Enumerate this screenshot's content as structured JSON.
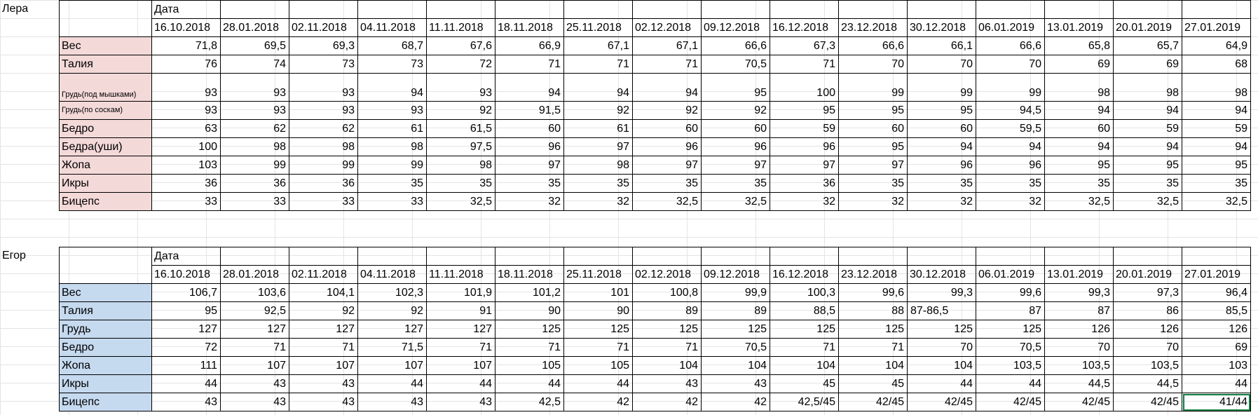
{
  "lera": {
    "label": "Лера",
    "date_header": "Дата",
    "dates": [
      "16.10.2018",
      "28.01.2018",
      "02.11.2018",
      "04.11.2018",
      "11.11.2018",
      "18.11.2018",
      "25.11.2018",
      "02.12.2018",
      "09.12.2018",
      "16.12.2018",
      "23.12.2018",
      "30.12.2018",
      "06.01.2019",
      "13.01.2019",
      "20.01.2019",
      "27.01.2019"
    ],
    "rows": [
      {
        "label": "Вес",
        "values": [
          "71,8",
          "69,5",
          "69,3",
          "68,7",
          "67,6",
          "66,9",
          "67,1",
          "67,1",
          "66,6",
          "67,3",
          "66,6",
          "66,1",
          "66,6",
          "65,8",
          "65,7",
          "64,9"
        ]
      },
      {
        "label": "Талия",
        "values": [
          "76",
          "74",
          "73",
          "73",
          "72",
          "71",
          "71",
          "71",
          "70,5",
          "71",
          "70",
          "70",
          "70",
          "69",
          "69",
          "68"
        ]
      },
      {
        "label": "Грудь(под мышками)",
        "values": [
          "93",
          "93",
          "93",
          "94",
          "93",
          "94",
          "94",
          "94",
          "95",
          "100",
          "99",
          "99",
          "99",
          "98",
          "98",
          "98"
        ]
      },
      {
        "label": "Грудь(по соскам)",
        "values": [
          "93",
          "93",
          "93",
          "93",
          "92",
          "91,5",
          "92",
          "92",
          "92",
          "95",
          "95",
          "95",
          "94,5",
          "94",
          "94",
          "94"
        ]
      },
      {
        "label": "Бедро",
        "values": [
          "63",
          "62",
          "62",
          "61",
          "61,5",
          "60",
          "61",
          "60",
          "60",
          "59",
          "60",
          "60",
          "59,5",
          "60",
          "59",
          "59"
        ]
      },
      {
        "label": "Бедра(уши)",
        "values": [
          "100",
          "98",
          "98",
          "98",
          "97,5",
          "96",
          "97",
          "96",
          "96",
          "96",
          "95",
          "94",
          "94",
          "94",
          "94",
          "94"
        ]
      },
      {
        "label": "Жопа",
        "values": [
          "103",
          "99",
          "99",
          "99",
          "98",
          "97",
          "98",
          "97",
          "97",
          "97",
          "97",
          "96",
          "96",
          "95",
          "95",
          "95"
        ]
      },
      {
        "label": "Икры",
        "values": [
          "36",
          "36",
          "36",
          "35",
          "35",
          "35",
          "35",
          "35",
          "35",
          "36",
          "35",
          "35",
          "35",
          "35",
          "35",
          "35"
        ]
      },
      {
        "label": "Бицепс",
        "values": [
          "33",
          "33",
          "33",
          "33",
          "32,5",
          "32",
          "32",
          "32,5",
          "32,5",
          "32",
          "32",
          "32",
          "32",
          "32,5",
          "32,5",
          "32,5"
        ]
      }
    ]
  },
  "egor": {
    "label": "Егор",
    "date_header": "Дата",
    "dates": [
      "16.10.2018",
      "28.01.2018",
      "02.11.2018",
      "04.11.2018",
      "11.11.2018",
      "18.11.2018",
      "25.11.2018",
      "02.12.2018",
      "09.12.2018",
      "16.12.2018",
      "23.12.2018",
      "30.12.2018",
      "06.01.2019",
      "13.01.2019",
      "20.01.2019",
      "27.01.2019"
    ],
    "rows": [
      {
        "label": "Вес",
        "values": [
          "106,7",
          "103,6",
          "104,1",
          "102,3",
          "101,9",
          "101,2",
          "101",
          "100,8",
          "99,9",
          "100,3",
          "99,6",
          "99,3",
          "99,6",
          "99,3",
          "97,3",
          "96,4"
        ]
      },
      {
        "label": "Талия",
        "values": [
          "95",
          "92,5",
          "92",
          "92",
          "91",
          "90",
          "90",
          "89",
          "89",
          "88,5",
          "88",
          "87-86,5",
          "87",
          "87",
          "86",
          "85,5"
        ]
      },
      {
        "label": "Грудь",
        "values": [
          "127",
          "127",
          "127",
          "127",
          "127",
          "125",
          "125",
          "125",
          "125",
          "125",
          "125",
          "125",
          "125",
          "126",
          "126",
          "126"
        ]
      },
      {
        "label": "Бедро",
        "values": [
          "72",
          "71",
          "71",
          "71,5",
          "71",
          "71",
          "71",
          "71",
          "70,5",
          "71",
          "71",
          "70",
          "70,5",
          "70",
          "70",
          "69"
        ]
      },
      {
        "label": "Жопа",
        "values": [
          "111",
          "107",
          "107",
          "107",
          "107",
          "105",
          "105",
          "104",
          "104",
          "104",
          "104",
          "104",
          "103,5",
          "103,5",
          "103,5",
          "103"
        ]
      },
      {
        "label": "Икры",
        "values": [
          "44",
          "43",
          "43",
          "44",
          "44",
          "44",
          "44",
          "43",
          "43",
          "45",
          "45",
          "44",
          "44",
          "44,5",
          "44,5",
          "44"
        ]
      },
      {
        "label": "Бицепс",
        "values": [
          "43",
          "43",
          "43",
          "43",
          "43",
          "42,5",
          "42",
          "42",
          "42",
          "42,5/45",
          "42/45",
          "42/45",
          "42/45",
          "42/45",
          "42/45",
          "41/44"
        ]
      }
    ]
  }
}
